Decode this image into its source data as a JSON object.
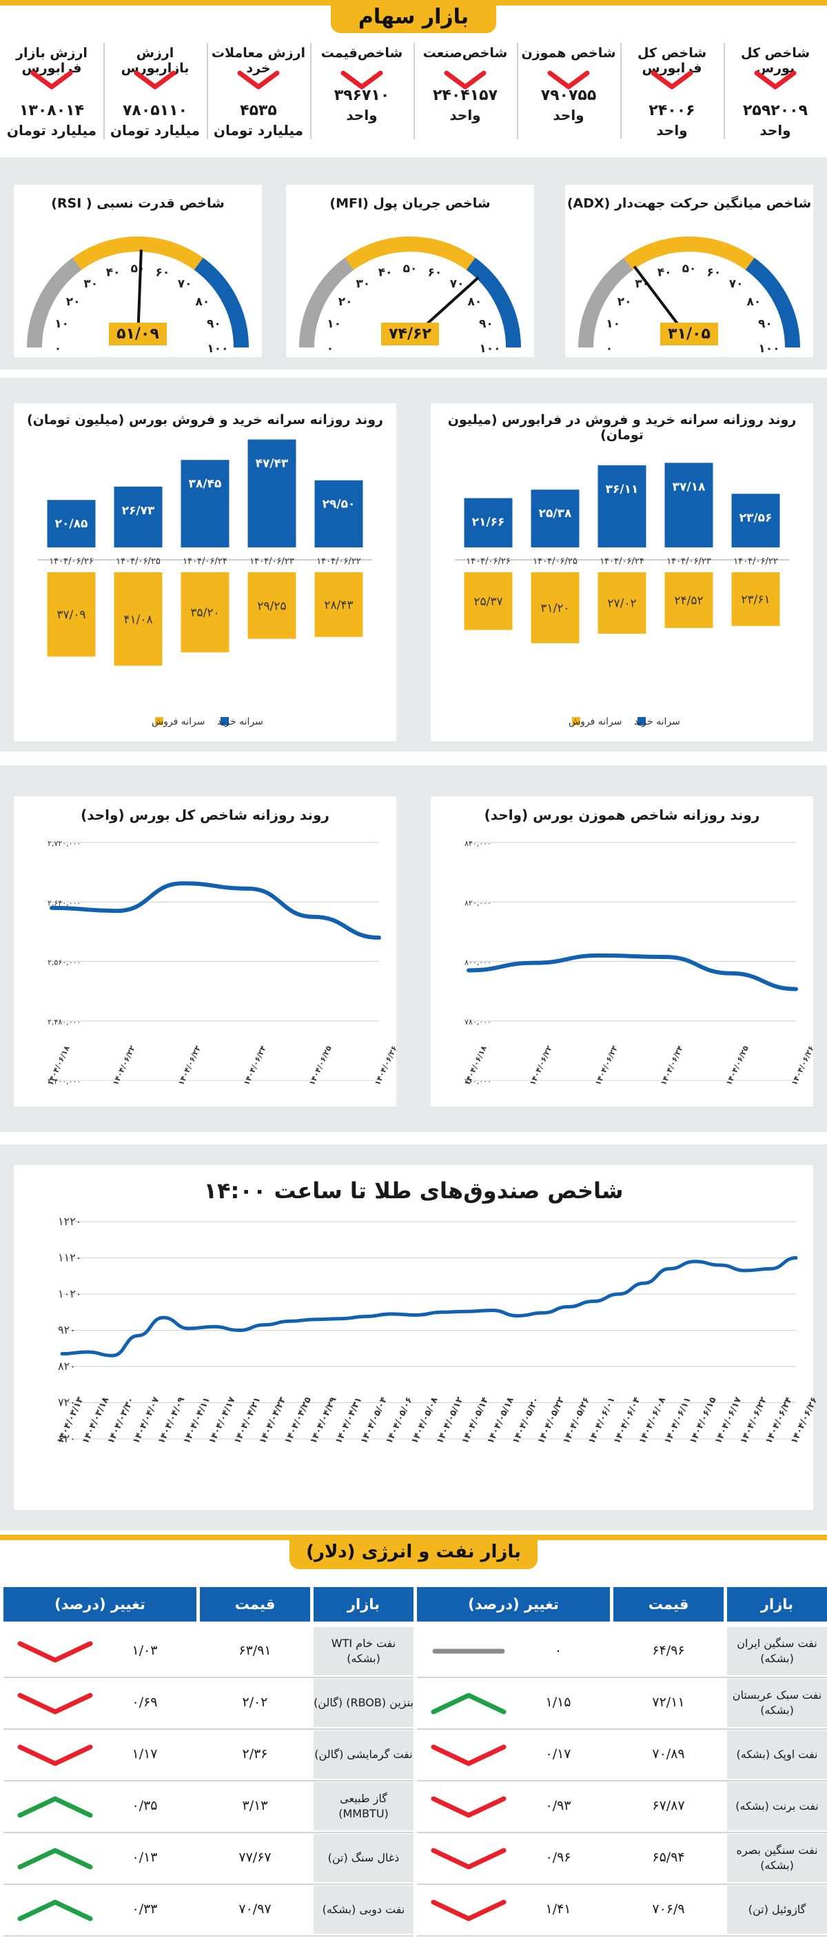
{
  "colors": {
    "accent": "#f3b61c",
    "blue": "#1261b0",
    "red": "#e8202a",
    "green": "#1fa046",
    "gray": "#8c8c8c"
  },
  "stock_market": {
    "title": "بازار سهام",
    "indicators": [
      {
        "title": "شاخص کل بورس",
        "value": "۲۵۹۲۰۰۹",
        "unit": "واحد",
        "trend": "down"
      },
      {
        "title": "شاخص کل فرابورس",
        "value": "۲۴۰۰۶",
        "unit": "واحد",
        "trend": "down"
      },
      {
        "title": "شاخص هموزن",
        "value": "۷۹۰۷۵۵",
        "unit": "واحد",
        "trend": "down"
      },
      {
        "title": "شاخص‌صنعت",
        "value": "۲۴۰۴۱۵۷",
        "unit": "واحد",
        "trend": "down"
      },
      {
        "title": "شاخص‌قیمت",
        "value": "۳۹۶۷۱۰",
        "unit": "واحد",
        "trend": "down"
      },
      {
        "title": "ارزش معاملات خرد",
        "value": "۴۵۳۵",
        "unit": "میلیارد تومان",
        "trend": "down"
      },
      {
        "title": "ارزش بازاربورس",
        "value": "۷۸۰۵۱۱۰",
        "unit": "میلیارد تومان",
        "trend": "down"
      },
      {
        "title": "ارزش بازار فرابورس",
        "value": "۱۳۰۸۰۱۴",
        "unit": "میلیارد تومان",
        "trend": "down"
      }
    ]
  },
  "gauges": [
    {
      "title": "شاخص میانگین حرکت جهت‌دار (ADX)",
      "value": 31.05,
      "label": "۳۱/۰۵"
    },
    {
      "title": "شاخص جریان پول (MFI)",
      "value": 74.62,
      "label": "۷۴/۶۲"
    },
    {
      "title": "شاخص قدرت نسبی ( RSI)",
      "value": 51.09,
      "label": "۵۱/۰۹"
    }
  ],
  "gauge_ticks": [
    "۰",
    "۱۰",
    "۲۰",
    "۳۰",
    "۴۰",
    "۵۰",
    "۶۰",
    "۷۰",
    "۸۰",
    "۹۰",
    "۱۰۰"
  ],
  "chart_data": [
    {
      "type": "bar",
      "title": "روند روزانه سرانه خرید و فروش در فرابورس (میلیون تومان)",
      "categories": [
        "۱۴۰۴/۰۶/۲۲",
        "۱۴۰۴/۰۶/۲۳",
        "۱۴۰۴/۰۶/۲۴",
        "۱۴۰۴/۰۶/۲۵",
        "۱۴۰۴/۰۶/۲۶"
      ],
      "series": [
        {
          "name": "سرانه خرید",
          "values": [
            23.56,
            37.18,
            36.11,
            25.38,
            21.66
          ],
          "labels": [
            "۲۳/۵۶",
            "۳۷/۱۸",
            "۳۶/۱۱",
            "۲۵/۳۸",
            "۲۱/۶۶"
          ]
        },
        {
          "name": "سرانه فروش",
          "values": [
            23.61,
            24.52,
            27.02,
            31.2,
            25.37
          ],
          "labels": [
            "۲۳/۶۱",
            "۲۴/۵۲",
            "۲۷/۰۲",
            "۳۱/۲۰",
            "۲۵/۳۷"
          ]
        }
      ]
    },
    {
      "type": "bar",
      "title": "روند روزانه سرانه خرید و فروش بورس (میلیون تومان)",
      "categories": [
        "۱۴۰۴/۰۶/۲۲",
        "۱۴۰۴/۰۶/۲۳",
        "۱۴۰۴/۰۶/۲۴",
        "۱۴۰۴/۰۶/۲۵",
        "۱۴۰۴/۰۶/۲۶"
      ],
      "series": [
        {
          "name": "سرانه خرید",
          "values": [
            29.5,
            47.43,
            38.45,
            26.73,
            20.85
          ],
          "labels": [
            "۲۹/۵۰",
            "۴۷/۴۳",
            "۳۸/۴۵",
            "۲۶/۷۳",
            "۲۰/۸۵"
          ]
        },
        {
          "name": "سرانه فروش",
          "values": [
            28.43,
            29.25,
            35.2,
            41.08,
            37.09
          ],
          "labels": [
            "۲۸/۴۳",
            "۲۹/۲۵",
            "۳۵/۲۰",
            "۴۱/۰۸",
            "۳۷/۰۹"
          ]
        }
      ]
    },
    {
      "type": "line",
      "title": "روند روزانه شاخص هموزن بورس (واحد)",
      "x": [
        "۱۴۰۴/۰۶/۱۸",
        "۱۴۰۴/۰۶/۲۲",
        "۱۴۰۴/۰۶/۲۳",
        "۱۴۰۴/۰۶/۲۴",
        "۱۴۰۴/۰۶/۲۵",
        "۱۴۰۴/۰۶/۲۶"
      ],
      "y": [
        797000,
        799500,
        802000,
        801500,
        796000,
        790700
      ],
      "ylim": [
        760000,
        840000
      ],
      "yticks": [
        760000,
        780000,
        800000,
        820000,
        840000
      ],
      "ytick_labels": [
        "۷۶۰,۰۰۰",
        "۷۸۰,۰۰۰",
        "۸۰۰,۰۰۰",
        "۸۲۰,۰۰۰",
        "۸۴۰,۰۰۰"
      ]
    },
    {
      "type": "line",
      "title": "روند روزانه شاخص کل بورس (واحد)",
      "x": [
        "۱۴۰۴/۰۶/۱۸",
        "۱۴۰۴/۰۶/۲۲",
        "۱۴۰۴/۰۶/۲۳",
        "۱۴۰۴/۰۶/۲۴",
        "۱۴۰۴/۰۶/۲۵",
        "۱۴۰۴/۰۶/۲۶"
      ],
      "y": [
        2632000,
        2628000,
        2665000,
        2658000,
        2620000,
        2592000
      ],
      "ylim": [
        2400000,
        2720000
      ],
      "yticks": [
        2400000,
        2480000,
        2560000,
        2640000,
        2720000
      ],
      "ytick_labels": [
        "۲,۴۰۰,۰۰۰",
        "۲,۴۸۰,۰۰۰",
        "۲,۵۶۰,۰۰۰",
        "۲,۶۴۰,۰۰۰",
        "۲,۷۲۰,۰۰۰"
      ]
    },
    {
      "type": "line",
      "title": "شاخص صندوق‌های طلا تا ساعت ۱۴:۰۰",
      "x": [
        "۱۴۰۴/۰۳/۱۳",
        "۱۴۰۴/۰۳/۱۸",
        "۱۴۰۴/۰۳/۳۰",
        "۱۴۰۴/۰۴/۰۷",
        "۱۴۰۴/۰۴/۰۹",
        "۱۴۰۴/۰۴/۱۱",
        "۱۴۰۴/۰۴/۱۷",
        "۱۴۰۴/۰۴/۲۱",
        "۱۴۰۴/۰۴/۲۳",
        "۱۴۰۴/۰۴/۲۵",
        "۱۴۰۴/۰۴/۲۹",
        "۱۴۰۴/۰۴/۳۱",
        "۱۴۰۴/۰۵/۰۴",
        "۱۴۰۴/۰۵/۰۶",
        "۱۴۰۴/۰۵/۰۸",
        "۱۴۰۴/۰۵/۱۲",
        "۱۴۰۴/۰۵/۱۴",
        "۱۴۰۴/۰۵/۱۸",
        "۱۴۰۴/۰۵/۲۰",
        "۱۴۰۴/۰۵/۲۲",
        "۱۴۰۴/۰۵/۲۶",
        "۱۴۰۴/۰۶/۰۱",
        "۱۴۰۴/۰۶/۰۴",
        "۱۴۰۴/۰۶/۰۸",
        "۱۴۰۴/۰۶/۱۱",
        "۱۴۰۴/۰۶/۱۵",
        "۱۴۰۴/۰۶/۱۷",
        "۱۴۰۴/۰۶/۲۲",
        "۱۴۰۴/۰۶/۲۴",
        "۱۴۰۴/۰۶/۲۶"
      ],
      "y": [
        855,
        860,
        850,
        905,
        955,
        925,
        930,
        920,
        935,
        945,
        950,
        952,
        958,
        965,
        962,
        970,
        972,
        975,
        960,
        968,
        985,
        1000,
        1020,
        1050,
        1090,
        1110,
        1100,
        1085,
        1090,
        1120
      ],
      "ylim": [
        620,
        1220
      ],
      "yticks": [
        620,
        720,
        820,
        920,
        1020,
        1120,
        1220
      ],
      "ytick_labels": [
        "۶۲۰",
        "۷۲۰",
        "۸۲۰",
        "۹۲۰",
        "۱۰۲۰",
        "۱۱۲۰",
        "۱۲۲۰"
      ]
    }
  ],
  "legend": {
    "buy": "سرانه خرید",
    "sell": "سرانه فروش"
  },
  "oil": {
    "title": "بازار نفت و انرژی (دلار)",
    "headers": {
      "market": "بازار",
      "price": "قیمت",
      "change": "تغییر (درصد)"
    },
    "right_rows": [
      {
        "market": "نفت سنگین ایران (بشکه)",
        "price": "۶۴/۹۶",
        "change": "۰",
        "trend": "flat"
      },
      {
        "market": "نفت سبک عربستان (بشکه)",
        "price": "۷۲/۱۱",
        "change": "۱/۱۵",
        "trend": "up"
      },
      {
        "market": "نفت اوپک (بشکه)",
        "price": "۷۰/۸۹",
        "change": "۰/۱۷",
        "trend": "down"
      },
      {
        "market": "نفت برنت (بشکه)",
        "price": "۶۷/۸۷",
        "change": "۰/۹۳",
        "trend": "down"
      },
      {
        "market": "نفت سنگین بصره (بشکه)",
        "price": "۶۵/۹۴",
        "change": "۰/۹۶",
        "trend": "down"
      },
      {
        "market": "گازوئیل (تن)",
        "price": "۷۰۶/۹",
        "change": "۱/۴۱",
        "trend": "down"
      }
    ],
    "left_rows": [
      {
        "market": "نفت خام WTI (بشکه)",
        "price": "۶۳/۹۱",
        "change": "۱/۰۳",
        "trend": "down"
      },
      {
        "market": "بنزین (RBOB) (گالن)",
        "price": "۲/۰۲",
        "change": "۰/۶۹",
        "trend": "down"
      },
      {
        "market": "نفت گرمایشی (گالن)",
        "price": "۲/۳۶",
        "change": "۱/۱۷",
        "trend": "down"
      },
      {
        "market": "گاز طبیعی (MMBTU)",
        "price": "۳/۱۳",
        "change": "۰/۳۵",
        "trend": "up"
      },
      {
        "market": "ذغال سنگ (تن)",
        "price": "۷۷/۶۷",
        "change": "۰/۱۳",
        "trend": "up"
      },
      {
        "market": "نفت دوبی (بشکه)",
        "price": "۷۰/۹۷",
        "change": "۰/۳۳",
        "trend": "up"
      }
    ]
  }
}
